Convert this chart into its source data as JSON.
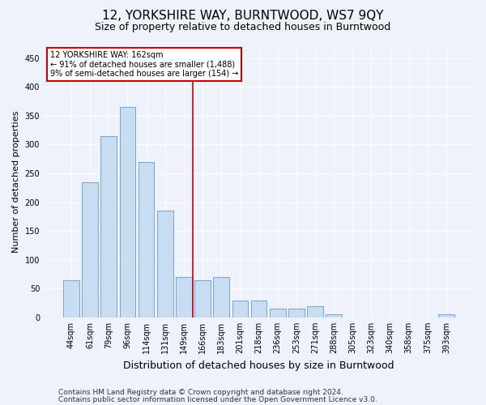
{
  "title": "12, YORKSHIRE WAY, BURNTWOOD, WS7 9QY",
  "subtitle": "Size of property relative to detached houses in Burntwood",
  "xlabel": "Distribution of detached houses by size in Burntwood",
  "ylabel": "Number of detached properties",
  "categories": [
    "44sqm",
    "61sqm",
    "79sqm",
    "96sqm",
    "114sqm",
    "131sqm",
    "149sqm",
    "166sqm",
    "183sqm",
    "201sqm",
    "218sqm",
    "236sqm",
    "253sqm",
    "271sqm",
    "288sqm",
    "305sqm",
    "323sqm",
    "340sqm",
    "358sqm",
    "375sqm",
    "393sqm"
  ],
  "values": [
    65,
    235,
    315,
    365,
    270,
    185,
    70,
    65,
    70,
    30,
    30,
    15,
    15,
    20,
    5,
    0,
    0,
    0,
    0,
    0,
    5
  ],
  "bar_color": "#c8ddf2",
  "bar_edge_color": "#6699cc",
  "vline_index": 7,
  "vline_color": "#cc0000",
  "annotation_line1": "12 YORKSHIRE WAY: 162sqm",
  "annotation_line2": "← 91% of detached houses are smaller (1,488)",
  "annotation_line3": "9% of semi-detached houses are larger (154) →",
  "annotation_box_facecolor": "#ffffff",
  "annotation_box_edgecolor": "#cc0000",
  "ylim": [
    0,
    470
  ],
  "yticks": [
    0,
    50,
    100,
    150,
    200,
    250,
    300,
    350,
    400,
    450
  ],
  "footer1": "Contains HM Land Registry data © Crown copyright and database right 2024.",
  "footer2": "Contains public sector information licensed under the Open Government Licence v3.0.",
  "bg_color": "#eef2fa",
  "title_fontsize": 11,
  "subtitle_fontsize": 9,
  "xlabel_fontsize": 9,
  "ylabel_fontsize": 8,
  "tick_fontsize": 7,
  "annotation_fontsize": 7,
  "footer_fontsize": 6.5
}
